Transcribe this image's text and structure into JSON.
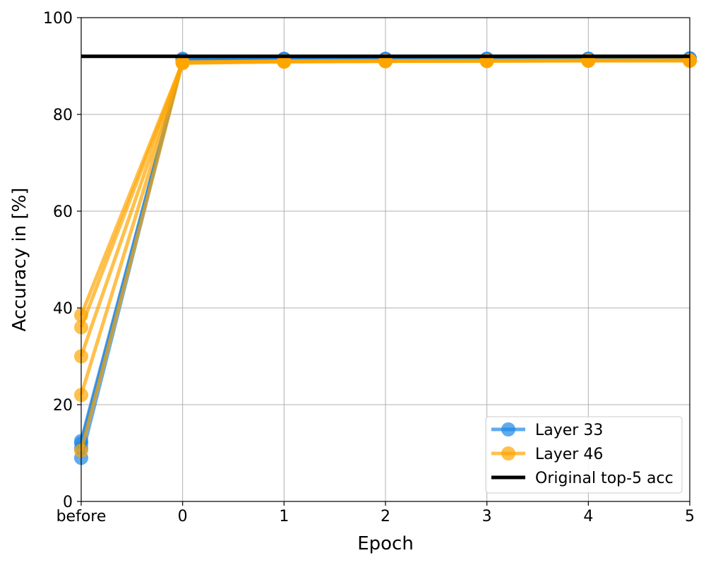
{
  "chart_data": {
    "type": "line",
    "title": "",
    "xlabel": "Epoch",
    "ylabel": "Accuracy in [%]",
    "categories": [
      "before",
      "0",
      "1",
      "2",
      "3",
      "4",
      "5"
    ],
    "ylim": [
      0,
      100
    ],
    "yticks": [
      0,
      20,
      40,
      60,
      80,
      100
    ],
    "grid": true,
    "legend_position": "lower-right",
    "series": [
      {
        "name": "Layer 33",
        "group": "layer33",
        "color": "#1e88e5",
        "values": [
          12.5,
          91.5,
          91.5,
          91.5,
          91.5,
          91.5,
          91.5
        ]
      },
      {
        "group": "layer33",
        "color": "#1e88e5",
        "values": [
          9.0,
          91.3,
          91.4,
          91.4,
          91.5,
          91.5,
          91.5
        ]
      },
      {
        "group": "layer33",
        "color": "#1e88e5",
        "values": [
          12.0,
          91.2,
          91.4,
          91.4,
          91.4,
          91.5,
          91.5
        ]
      },
      {
        "group": "layer33",
        "color": "#1e88e5",
        "values": [
          11.0,
          91.4,
          91.5,
          91.5,
          91.5,
          91.5,
          91.6
        ]
      },
      {
        "name": "Layer 46",
        "group": "layer46",
        "color": "#ffa500",
        "values": [
          38.5,
          90.8,
          91.0,
          91.0,
          91.1,
          91.1,
          91.2
        ]
      },
      {
        "group": "layer46",
        "color": "#ffa500",
        "values": [
          36.0,
          90.7,
          91.0,
          91.1,
          91.1,
          91.2,
          91.2
        ]
      },
      {
        "group": "layer46",
        "color": "#ffa500",
        "values": [
          30.0,
          90.6,
          90.9,
          91.0,
          91.1,
          91.1,
          91.2
        ]
      },
      {
        "group": "layer46",
        "color": "#ffa500",
        "values": [
          22.0,
          90.8,
          91.0,
          91.0,
          91.1,
          91.1,
          91.1
        ]
      },
      {
        "group": "layer46",
        "color": "#ffa500",
        "values": [
          10.5,
          90.7,
          90.9,
          91.0,
          91.0,
          91.1,
          91.1
        ]
      }
    ],
    "reference_line": {
      "name": "Original top-5 acc",
      "value": 92.0,
      "color": "#000000"
    },
    "legend": [
      {
        "label": "Layer 33",
        "color": "#1e88e5",
        "marker": "circle"
      },
      {
        "label": "Layer 46",
        "color": "#ffa500",
        "marker": "circle"
      },
      {
        "label": "Original top-5 acc",
        "color": "#000000",
        "marker": "none"
      }
    ]
  }
}
